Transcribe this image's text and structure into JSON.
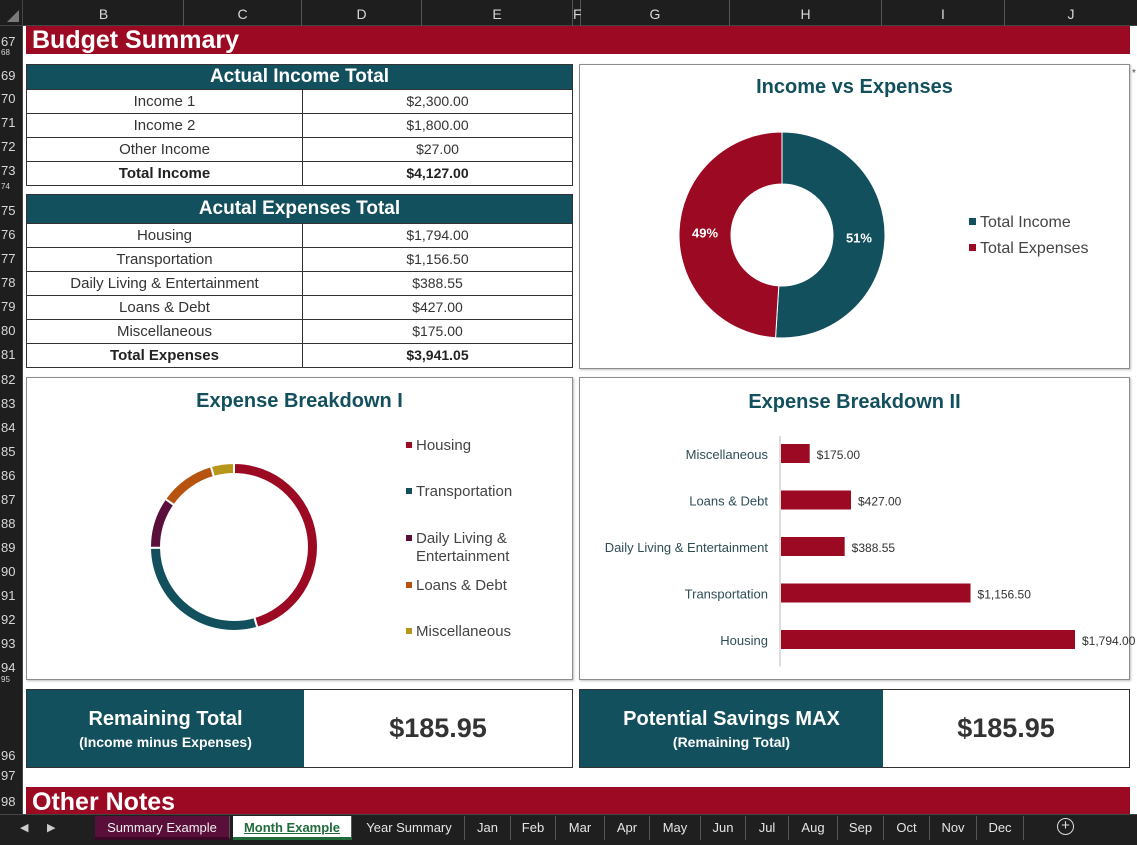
{
  "columns": [
    "B",
    "C",
    "D",
    "E",
    "F",
    "G",
    "H",
    "I",
    "J"
  ],
  "rows": [
    "67",
    "68",
    "69",
    "70",
    "71",
    "72",
    "73",
    "74",
    "75",
    "76",
    "77",
    "78",
    "79",
    "80",
    "81",
    "82",
    "83",
    "84",
    "85",
    "86",
    "87",
    "88",
    "89",
    "90",
    "91",
    "92",
    "93",
    "94",
    "95",
    "96",
    "97",
    "98"
  ],
  "title_band": "Budget Summary",
  "notes_band": "Other Notes",
  "income_table": {
    "header": "Actual Income Total",
    "rows": [
      {
        "label": "Income 1",
        "value": "$2,300.00"
      },
      {
        "label": "Income 2",
        "value": "$1,800.00"
      },
      {
        "label": "Other Income",
        "value": "$27.00"
      }
    ],
    "total": {
      "label": "Total Income",
      "value": "$4,127.00"
    }
  },
  "expense_table": {
    "header": "Acutal Expenses Total",
    "rows": [
      {
        "label": "Housing",
        "value": "$1,794.00"
      },
      {
        "label": "Transportation",
        "value": "$1,156.50"
      },
      {
        "label": "Daily Living & Entertainment",
        "value": "$388.55"
      },
      {
        "label": "Loans & Debt",
        "value": "$427.00"
      },
      {
        "label": "Miscellaneous",
        "value": "$175.00"
      }
    ],
    "total": {
      "label": "Total Expenses",
      "value": "$3,941.05"
    }
  },
  "chart_data": [
    {
      "type": "pie",
      "title": "Income vs Expenses",
      "categories": [
        "Total Income",
        "Total Expenses"
      ],
      "values": [
        51,
        49
      ],
      "data_labels": [
        "51%",
        "49%"
      ],
      "colors": [
        "#13505e",
        "#9b0a22"
      ],
      "legend": "right"
    },
    {
      "type": "pie",
      "title": "Expense Breakdown I",
      "categories": [
        "Housing",
        "Transportation",
        "Daily Living & Entertainment",
        "Loans & Debt",
        "Miscellaneous"
      ],
      "values": [
        1794.0,
        1156.5,
        388.55,
        427.0,
        175.0
      ],
      "colors": [
        "#9b0a22",
        "#13505e",
        "#5a0f3a",
        "#b5530f",
        "#b8961a"
      ],
      "legend": "right"
    },
    {
      "type": "bar",
      "title": "Expense Breakdown II",
      "orientation": "horizontal",
      "categories": [
        "Housing",
        "Transportation",
        "Daily Living & Entertainment",
        "Loans & Debt",
        "Miscellaneous"
      ],
      "values": [
        1794.0,
        1156.5,
        388.55,
        427.0,
        175.0
      ],
      "data_labels": [
        "$1,794.00",
        "$1,156.50",
        "$388.55",
        "$427.00",
        "$175.00"
      ],
      "color": "#9b0a22"
    }
  ],
  "kpis": [
    {
      "title": "Remaining Total",
      "subtitle": "(Income minus Expenses)",
      "value": "$185.95"
    },
    {
      "title": "Potential Savings MAX",
      "subtitle": "(Remaining Total)",
      "value": "$185.95"
    }
  ],
  "tabs": [
    "Summary Example",
    "Month Example",
    "Year Summary",
    "Jan",
    "Feb",
    "Mar",
    "Apr",
    "May",
    "Jun",
    "Jul",
    "Aug",
    "Sep",
    "Oct",
    "Nov",
    "Dec"
  ],
  "active_tab": "Month Example",
  "colors": {
    "accent": "#9b0a22",
    "teal": "#13505e"
  }
}
